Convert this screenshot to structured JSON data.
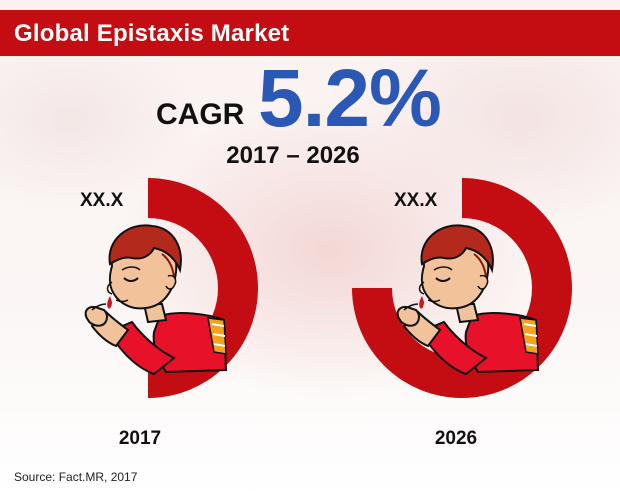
{
  "header": {
    "title": "Global Epistaxis Market"
  },
  "cagr": {
    "label": "CAGR",
    "value": "5.2%",
    "period": "2017 – 2026"
  },
  "chart_data": {
    "type": "pie",
    "title": "Global Epistaxis Market",
    "subtitle": "CAGR 5.2% 2017 – 2026",
    "series": [
      {
        "name": "2017",
        "year_label": "2017",
        "value_label": "XX.X",
        "fraction": 0.5,
        "color": "#c40d12"
      },
      {
        "name": "2026",
        "year_label": "2026",
        "value_label": "XX.X",
        "fraction": 0.75,
        "color": "#c40d12"
      }
    ]
  },
  "icons": {
    "person": "person-nosebleed-icon"
  },
  "colors": {
    "accent": "#c40d12",
    "cagr": "#2b58b4"
  },
  "footer": {
    "source": "Source: Fact.MR, 2017"
  }
}
